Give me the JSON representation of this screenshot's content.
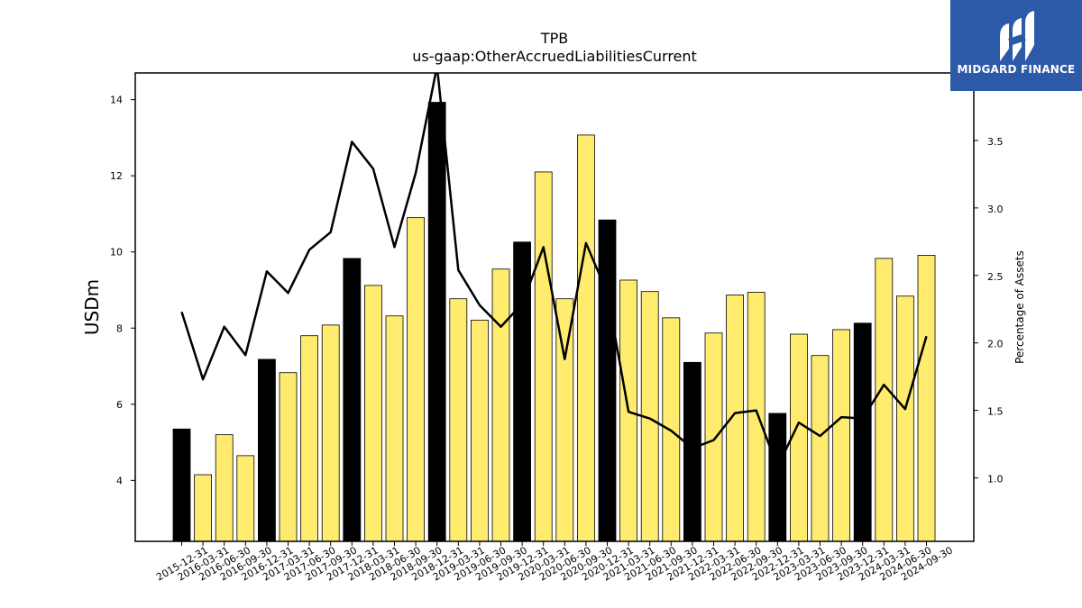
{
  "logo": {
    "text": "MIDGARD FINANCE",
    "icon": "midgard-m-logo-icon",
    "bg_color": "#2d5aa8"
  },
  "chart_data": {
    "type": "bar",
    "title": "TPB",
    "subtitle": "us-gaap:OtherAccruedLiabilitiesCurrent",
    "ylabel": "USDm",
    "ylabel_right": "Percentage of Assets",
    "ylim": [
      2.4,
      14.7
    ],
    "ylim_right": [
      0.53,
      4.0
    ],
    "yticks": [
      4,
      6,
      8,
      10,
      12,
      14
    ],
    "yticks_right": [
      1.0,
      1.5,
      2.0,
      2.5,
      3.0,
      3.5
    ],
    "ytick_labels_right": [
      "1.0",
      "1.5",
      "2.0",
      "2.5",
      "3.0",
      "3.5"
    ],
    "grid": false,
    "colors": {
      "bar_q4": "#000000",
      "bar_other": "#ffec6e",
      "bar_edge": "#000000",
      "line": "#000000"
    },
    "categories": [
      "2015-12-31",
      "2016-03-31",
      "2016-06-30",
      "2016-09-30",
      "2016-12-31",
      "2017-03-31",
      "2017-06-30",
      "2017-09-30",
      "2017-12-31",
      "2018-03-31",
      "2018-06-30",
      "2018-09-30",
      "2018-12-31",
      "2019-03-31",
      "2019-06-30",
      "2019-09-30",
      "2019-12-31",
      "2020-03-31",
      "2020-06-30",
      "2020-09-30",
      "2020-12-31",
      "2021-03-31",
      "2021-06-30",
      "2021-09-30",
      "2021-12-31",
      "2022-03-31",
      "2022-06-30",
      "2022-09-30",
      "2022-12-31",
      "2023-03-31",
      "2023-06-30",
      "2023-09-30",
      "2023-12-31",
      "2024-03-31",
      "2024-06-30",
      "2024-09-30"
    ],
    "series": [
      {
        "kind": "bar",
        "axis": "left",
        "values": [
          5.35,
          4.15,
          5.2,
          4.65,
          7.18,
          6.83,
          7.8,
          8.08,
          9.83,
          9.12,
          8.32,
          10.9,
          13.93,
          8.77,
          8.21,
          9.55,
          10.26,
          12.1,
          8.77,
          13.07,
          10.84,
          9.26,
          8.96,
          8.27,
          7.1,
          7.87,
          8.87,
          8.94,
          5.76,
          7.84,
          7.28,
          7.96,
          8.13,
          9.83,
          8.84,
          9.91
        ]
      },
      {
        "kind": "line",
        "axis": "right",
        "values": [
          2.23,
          1.73,
          2.12,
          1.91,
          2.53,
          2.37,
          2.69,
          2.82,
          3.49,
          3.29,
          2.71,
          3.26,
          4.05,
          2.54,
          2.28,
          2.12,
          2.29,
          2.71,
          1.88,
          2.74,
          2.37,
          1.49,
          1.44,
          1.35,
          1.22,
          1.28,
          1.48,
          1.5,
          1.08,
          1.41,
          1.31,
          1.45,
          1.44,
          1.69,
          1.51,
          2.05
        ]
      }
    ]
  }
}
